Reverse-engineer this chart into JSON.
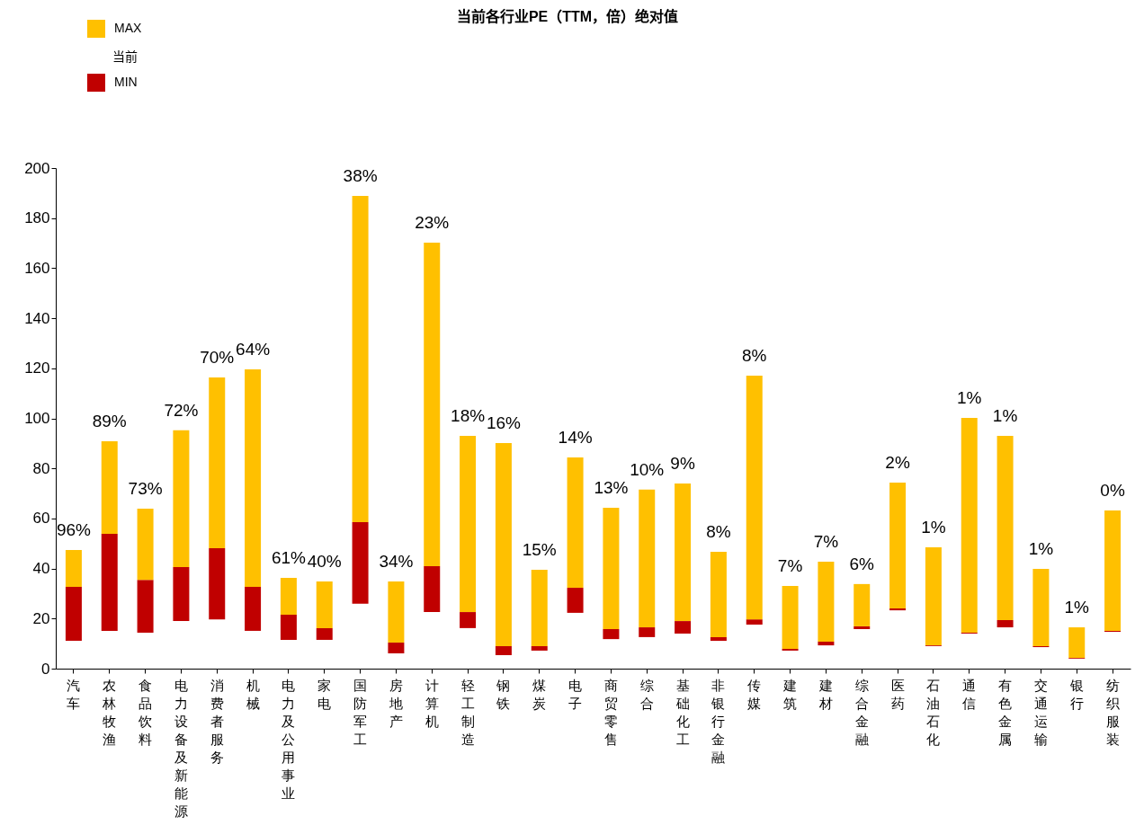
{
  "chart_data": {
    "type": "bar",
    "title": "当前各行业PE（TTM，倍）绝对值",
    "categories": [
      "汽车",
      "农林牧渔",
      "食品饮料",
      "电力设备及新能源",
      "消费者服务",
      "机械",
      "电力及公用事业",
      "家电",
      "国防军工",
      "房地产",
      "计算机",
      "轻工制造",
      "钢铁",
      "煤炭",
      "电子",
      "商贸零售",
      "综合",
      "基础化工",
      "非银行金融",
      "传媒",
      "建筑",
      "建材",
      "综合金融",
      "医药",
      "石油石化",
      "通信",
      "有色金属",
      "交通运输",
      "银行",
      "纺织服装"
    ],
    "series": [
      {
        "name": "MIN",
        "color": "#c00000",
        "base": [
          11.1,
          15.1,
          14.4,
          19.0,
          19.7,
          15.1,
          11.5,
          11.5,
          25.9,
          6.1,
          22.6,
          16.2,
          5.4,
          7.2,
          22.3,
          11.8,
          12.6,
          14.0,
          11.1,
          17.6,
          7.2,
          9.3,
          15.8,
          23.3,
          9.0,
          14.0,
          16.5,
          8.6,
          4.0,
          14.7
        ],
        "values": [
          21.6,
          38.8,
          21.1,
          21.6,
          28.4,
          17.6,
          10.0,
          4.7,
          32.6,
          4.3,
          18.3,
          6.4,
          3.6,
          1.8,
          10.0,
          4.0,
          3.9,
          5.0,
          1.5,
          2.1,
          0.7,
          1.5,
          1.1,
          0.8,
          0.3,
          0.4,
          2.9,
          0.4,
          0.3,
          0.4
        ]
      },
      {
        "name": "MAX",
        "color": "#ffc000",
        "base": [
          32.7,
          53.9,
          35.5,
          40.6,
          48.1,
          32.7,
          21.5,
          16.2,
          58.5,
          10.4,
          40.9,
          22.6,
          9.0,
          9.0,
          32.3,
          15.8,
          16.5,
          19.0,
          12.6,
          19.7,
          7.9,
          10.8,
          16.9,
          24.1,
          9.3,
          14.4,
          19.4,
          9.0,
          4.3,
          15.1
        ],
        "values": [
          14.7,
          36.9,
          28.4,
          54.6,
          68.2,
          86.9,
          14.8,
          18.6,
          130.4,
          24.4,
          129.3,
          70.4,
          81.1,
          30.5,
          52.1,
          48.5,
          55.0,
          55.0,
          34.1,
          97.4,
          25.1,
          31.9,
          16.9,
          50.2,
          39.2,
          85.8,
          73.6,
          30.9,
          12.2,
          48.1
        ]
      }
    ],
    "annotations": [
      "当前",
      {
        "text": "96%",
        "x": "汽车",
        "y": 47.4
      },
      {
        "text": "89%",
        "x": "农林牧渔",
        "y": 90.8
      },
      {
        "text": "73%",
        "x": "食品饮料",
        "y": 63.9
      },
      {
        "text": "72%",
        "x": "电力设备及新能源",
        "y": 95.2
      },
      {
        "text": "70%",
        "x": "消费者服务",
        "y": 116.3
      },
      {
        "text": "64%",
        "x": "机械",
        "y": 119.6
      },
      {
        "text": "61%",
        "x": "电力及公用事业",
        "y": 36.3
      },
      {
        "text": "40%",
        "x": "家电",
        "y": 34.8
      },
      {
        "text": "38%",
        "x": "国防军工",
        "y": 188.9
      },
      {
        "text": "34%",
        "x": "房地产",
        "y": 34.8
      },
      {
        "text": "23%",
        "x": "计算机",
        "y": 170.2
      },
      {
        "text": "18%",
        "x": "轻工制造",
        "y": 93.0
      },
      {
        "text": "16%",
        "x": "钢铁",
        "y": 90.1
      },
      {
        "text": "15%",
        "x": "煤炭",
        "y": 39.5
      },
      {
        "text": "14%",
        "x": "电子",
        "y": 84.4
      },
      {
        "text": "13%",
        "x": "商贸零售",
        "y": 64.3
      },
      {
        "text": "10%",
        "x": "综合",
        "y": 71.5
      },
      {
        "text": "9%",
        "x": "基础化工",
        "y": 74.0
      },
      {
        "text": "8%",
        "x": "非银行金融",
        "y": 46.7
      },
      {
        "text": "8%",
        "x": "传媒",
        "y": 117.1
      },
      {
        "text": "7%",
        "x": "建筑",
        "y": 33.0
      },
      {
        "text": "7%",
        "x": "建材",
        "y": 42.7
      },
      {
        "text": "6%",
        "x": "综合金融",
        "y": 33.8
      },
      {
        "text": "2%",
        "x": "医药",
        "y": 74.3
      },
      {
        "text": "1%",
        "x": "石油石化",
        "y": 48.5
      },
      {
        "text": "1%",
        "x": "通信",
        "y": 100.2
      },
      {
        "text": "1%",
        "x": "有色金属",
        "y": 93.0
      },
      {
        "text": "1%",
        "x": "交通运输",
        "y": 39.9
      },
      {
        "text": "1%",
        "x": "银行",
        "y": 16.5
      },
      {
        "text": "0%",
        "x": "纺织服装",
        "y": 63.2
      }
    ],
    "ylim": [
      0,
      200
    ],
    "yticks": [
      0,
      20,
      40,
      60,
      80,
      100,
      120,
      140,
      160,
      180,
      200
    ],
    "grid": false,
    "legend": "top left"
  }
}
